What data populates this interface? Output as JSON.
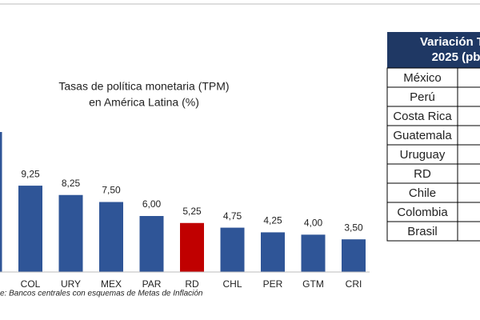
{
  "chart_data": {
    "type": "bar",
    "title": [
      "Tasas de política monetaria (TPM)",
      "en América Latina (%)"
    ],
    "categories": [
      null,
      "COL",
      "URY",
      "MEX",
      "PAR",
      "RD",
      "CHL",
      "PER",
      "GTM",
      "CRI"
    ],
    "values": [
      15,
      9.25,
      8.25,
      7.5,
      6,
      5.25,
      4.75,
      4.25,
      4,
      3.5
    ],
    "value_labels": [
      null,
      "9,25",
      "8,25",
      "7,50",
      "6,00",
      "5,25",
      "4,75",
      "4,25",
      "4,00",
      "3,50"
    ],
    "colors": [
      "#2f5597",
      "#2f5597",
      "#2f5597",
      "#2f5597",
      "#2f5597",
      "#c00000",
      "#2f5597",
      "#2f5597",
      "#2f5597",
      "#2f5597"
    ],
    "ylim": [
      0,
      15
    ],
    "source": "e: Bancos centrales con esquemas de Metas de Inflación"
  },
  "table": {
    "header": [
      "Variación TP",
      "2025 (pb"
    ],
    "rows": [
      "México",
      "Perú",
      "Costa Rica",
      "Guatemala",
      "Uruguay",
      "RD",
      "Chile",
      "Colombia",
      "Brasil"
    ]
  }
}
